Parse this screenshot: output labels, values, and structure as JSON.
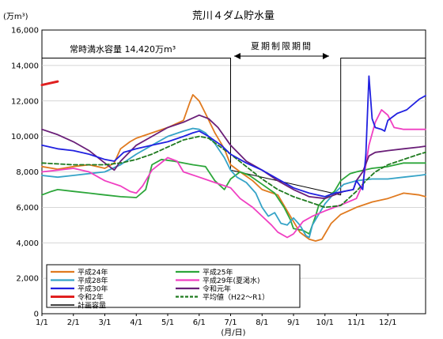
{
  "chart_data": {
    "type": "line",
    "title": "荒川４ダム貯水量",
    "y_unit_label": "(万m³)",
    "x_unit_label": "(月/日)",
    "ylim": [
      0,
      16000
    ],
    "y_ticks": [
      "0",
      "2,000",
      "4,000",
      "6,000",
      "8,000",
      "10,000",
      "12,000",
      "14,000",
      "16,000"
    ],
    "x_ticks": [
      "1/1",
      "2/1",
      "3/1",
      "4/1",
      "5/1",
      "6/1",
      "7/1",
      "8/1",
      "9/1",
      "10/1",
      "11/1",
      "12/1"
    ],
    "grid": true,
    "legend_placement": "bottom-left",
    "annotations": {
      "normal_capacity": "常時満水容量 14,420万m³",
      "summer_period": "夏期制限期間"
    },
    "series": [
      {
        "name": "平成24年",
        "color": "#e07a1f",
        "dash": false,
        "width": 1.8,
        "points": [
          [
            0,
            8300
          ],
          [
            0.5,
            8150
          ],
          [
            1,
            8300
          ],
          [
            1.5,
            8400
          ],
          [
            2,
            8200
          ],
          [
            2.3,
            8500
          ],
          [
            2.5,
            9300
          ],
          [
            2.8,
            9700
          ],
          [
            3,
            9900
          ],
          [
            3.5,
            10200
          ],
          [
            4,
            10500
          ],
          [
            4.5,
            10900
          ],
          [
            4.7,
            11900
          ],
          [
            4.8,
            12350
          ],
          [
            5,
            12000
          ],
          [
            5.2,
            11300
          ],
          [
            5.5,
            10200
          ],
          [
            5.8,
            9300
          ],
          [
            6,
            8400
          ],
          [
            6.3,
            8000
          ],
          [
            6.7,
            7500
          ],
          [
            7,
            7000
          ],
          [
            7.5,
            6700
          ],
          [
            7.8,
            5800
          ],
          [
            8,
            5200
          ],
          [
            8.2,
            4600
          ],
          [
            8.5,
            4200
          ],
          [
            8.7,
            4100
          ],
          [
            8.9,
            4200
          ],
          [
            9,
            4500
          ],
          [
            9.2,
            5100
          ],
          [
            9.5,
            5600
          ],
          [
            10,
            6000
          ],
          [
            10.5,
            6300
          ],
          [
            11,
            6500
          ],
          [
            11.5,
            6800
          ],
          [
            12,
            6700
          ],
          [
            12.2,
            6600
          ]
        ]
      },
      {
        "name": "平成25年",
        "color": "#2ca63a",
        "dash": false,
        "width": 1.8,
        "points": [
          [
            0,
            6700
          ],
          [
            0.3,
            6900
          ],
          [
            0.5,
            7000
          ],
          [
            1,
            6900
          ],
          [
            1.5,
            6800
          ],
          [
            2,
            6700
          ],
          [
            2.5,
            6600
          ],
          [
            3,
            6550
          ],
          [
            3.3,
            7000
          ],
          [
            3.5,
            8400
          ],
          [
            3.8,
            8700
          ],
          [
            4.2,
            8600
          ],
          [
            4.5,
            8500
          ],
          [
            4.8,
            8400
          ],
          [
            5.2,
            8300
          ],
          [
            5.5,
            7500
          ],
          [
            5.8,
            7000
          ],
          [
            6,
            7600
          ],
          [
            6.3,
            8000
          ],
          [
            6.6,
            7800
          ],
          [
            7,
            7300
          ],
          [
            7.4,
            6800
          ],
          [
            7.7,
            6000
          ],
          [
            7.9,
            5300
          ],
          [
            8,
            4800
          ],
          [
            8.3,
            4700
          ],
          [
            8.5,
            4500
          ],
          [
            8.7,
            5500
          ],
          [
            8.8,
            6100
          ],
          [
            9,
            6500
          ],
          [
            9.3,
            6900
          ],
          [
            9.5,
            7500
          ],
          [
            9.8,
            7900
          ],
          [
            10,
            8000
          ],
          [
            10.5,
            8200
          ],
          [
            11,
            8300
          ],
          [
            11.5,
            8500
          ],
          [
            12,
            8500
          ],
          [
            12.2,
            8500
          ]
        ]
      },
      {
        "name": "平成28年",
        "color": "#35a3c7",
        "dash": false,
        "width": 1.8,
        "points": [
          [
            0,
            7800
          ],
          [
            0.5,
            7700
          ],
          [
            1,
            7800
          ],
          [
            1.5,
            7900
          ],
          [
            2,
            8000
          ],
          [
            2.5,
            8400
          ],
          [
            3,
            9000
          ],
          [
            3.5,
            9500
          ],
          [
            4,
            10000
          ],
          [
            4.5,
            10300
          ],
          [
            4.8,
            10450
          ],
          [
            5,
            10400
          ],
          [
            5.2,
            10200
          ],
          [
            5.5,
            9600
          ],
          [
            5.8,
            8800
          ],
          [
            6,
            8100
          ],
          [
            6.2,
            7700
          ],
          [
            6.5,
            7400
          ],
          [
            6.8,
            6800
          ],
          [
            7,
            6000
          ],
          [
            7.2,
            5500
          ],
          [
            7.4,
            5700
          ],
          [
            7.6,
            5100
          ],
          [
            7.8,
            5000
          ],
          [
            8,
            5400
          ],
          [
            8.2,
            5000
          ],
          [
            8.4,
            4400
          ],
          [
            8.5,
            4300
          ],
          [
            8.6,
            5000
          ],
          [
            8.8,
            5600
          ],
          [
            9,
            6200
          ],
          [
            9.3,
            6800
          ],
          [
            9.6,
            7300
          ],
          [
            10,
            7500
          ],
          [
            10.5,
            7600
          ],
          [
            11,
            7600
          ],
          [
            11.5,
            7700
          ],
          [
            12,
            7800
          ],
          [
            12.2,
            7850
          ]
        ]
      },
      {
        "name": "平成29年(夏渇水)",
        "color": "#f03fc2",
        "dash": false,
        "width": 1.8,
        "points": [
          [
            0,
            8000
          ],
          [
            0.5,
            8100
          ],
          [
            1,
            8200
          ],
          [
            1.5,
            8000
          ],
          [
            2,
            7500
          ],
          [
            2.5,
            7200
          ],
          [
            2.8,
            6900
          ],
          [
            3,
            6800
          ],
          [
            3.2,
            7200
          ],
          [
            3.5,
            8100
          ],
          [
            4,
            8800
          ],
          [
            4.3,
            8600
          ],
          [
            4.5,
            8000
          ],
          [
            5,
            7700
          ],
          [
            5.5,
            7400
          ],
          [
            6,
            7100
          ],
          [
            6.3,
            6500
          ],
          [
            6.7,
            6000
          ],
          [
            7,
            5500
          ],
          [
            7.3,
            5000
          ],
          [
            7.5,
            4600
          ],
          [
            7.8,
            4300
          ],
          [
            8,
            4500
          ],
          [
            8.3,
            5200
          ],
          [
            8.6,
            5500
          ],
          [
            9,
            5800
          ],
          [
            9.3,
            6000
          ],
          [
            9.6,
            6200
          ],
          [
            10,
            6500
          ],
          [
            10.2,
            7300
          ],
          [
            10.4,
            9500
          ],
          [
            10.6,
            10800
          ],
          [
            10.8,
            11500
          ],
          [
            11,
            11200
          ],
          [
            11.2,
            10500
          ],
          [
            11.5,
            10400
          ],
          [
            12,
            10400
          ],
          [
            12.2,
            10400
          ]
        ]
      },
      {
        "name": "平成30年",
        "color": "#2020e0",
        "dash": false,
        "width": 1.8,
        "points": [
          [
            0,
            9500
          ],
          [
            0.5,
            9300
          ],
          [
            1,
            9200
          ],
          [
            1.5,
            9000
          ],
          [
            2,
            8700
          ],
          [
            2.3,
            8600
          ],
          [
            2.6,
            9100
          ],
          [
            3,
            9300
          ],
          [
            3.5,
            9500
          ],
          [
            4,
            9700
          ],
          [
            4.5,
            10000
          ],
          [
            4.8,
            10200
          ],
          [
            5,
            10300
          ],
          [
            5.3,
            10000
          ],
          [
            5.7,
            9500
          ],
          [
            6,
            9000
          ],
          [
            6.5,
            8500
          ],
          [
            7,
            8100
          ],
          [
            7.5,
            7600
          ],
          [
            8,
            7100
          ],
          [
            8.5,
            6800
          ],
          [
            9,
            6600
          ],
          [
            9.3,
            6800
          ],
          [
            9.6,
            6900
          ],
          [
            9.9,
            7000
          ],
          [
            10,
            7500
          ],
          [
            10.2,
            7000
          ],
          [
            10.3,
            9000
          ],
          [
            10.4,
            13400
          ],
          [
            10.5,
            11000
          ],
          [
            10.6,
            10500
          ],
          [
            10.8,
            10400
          ],
          [
            10.9,
            10300
          ],
          [
            11,
            10900
          ],
          [
            11.3,
            11300
          ],
          [
            11.6,
            11500
          ],
          [
            12,
            12100
          ],
          [
            12.2,
            12300
          ]
        ]
      },
      {
        "name": "令和元年",
        "color": "#6a1f78",
        "dash": false,
        "width": 1.8,
        "points": [
          [
            0,
            10400
          ],
          [
            0.5,
            10100
          ],
          [
            1,
            9700
          ],
          [
            1.5,
            9200
          ],
          [
            2,
            8500
          ],
          [
            2.3,
            8100
          ],
          [
            2.5,
            8600
          ],
          [
            3,
            9500
          ],
          [
            3.5,
            10000
          ],
          [
            4,
            10500
          ],
          [
            4.5,
            10800
          ],
          [
            5,
            11200
          ],
          [
            5.3,
            11000
          ],
          [
            5.6,
            10500
          ],
          [
            6,
            9500
          ],
          [
            6.5,
            8600
          ],
          [
            7,
            8100
          ],
          [
            7.5,
            7500
          ],
          [
            8,
            7000
          ],
          [
            8.5,
            6600
          ],
          [
            9,
            6500
          ],
          [
            9.3,
            6700
          ],
          [
            9.6,
            6900
          ],
          [
            9.9,
            7000
          ],
          [
            10,
            7500
          ],
          [
            10.2,
            8000
          ],
          [
            10.4,
            8900
          ],
          [
            10.6,
            9100
          ],
          [
            11,
            9200
          ],
          [
            11.5,
            9300
          ],
          [
            12,
            9400
          ],
          [
            12.2,
            9450
          ]
        ]
      },
      {
        "name": "令和2年",
        "color": "#e02020",
        "dash": false,
        "width": 3,
        "points": [
          [
            0,
            12900
          ],
          [
            0.25,
            13000
          ],
          [
            0.5,
            13100
          ]
        ]
      },
      {
        "name": "平均値（H22～R1）",
        "color": "#1f7a1f",
        "dash": true,
        "width": 1.8,
        "points": [
          [
            0,
            8500
          ],
          [
            0.5,
            8450
          ],
          [
            1,
            8400
          ],
          [
            1.5,
            8400
          ],
          [
            2,
            8400
          ],
          [
            2.5,
            8500
          ],
          [
            3,
            8700
          ],
          [
            3.5,
            9000
          ],
          [
            4,
            9400
          ],
          [
            4.5,
            9800
          ],
          [
            5,
            10000
          ],
          [
            5.3,
            9900
          ],
          [
            5.6,
            9500
          ],
          [
            6,
            9000
          ],
          [
            6.5,
            8300
          ],
          [
            7,
            7600
          ],
          [
            7.5,
            7000
          ],
          [
            8,
            6600
          ],
          [
            8.5,
            6300
          ],
          [
            9,
            6000
          ],
          [
            9.5,
            6100
          ],
          [
            10,
            6900
          ],
          [
            10.3,
            7500
          ],
          [
            10.6,
            8000
          ],
          [
            11,
            8400
          ],
          [
            11.5,
            8700
          ],
          [
            12,
            9000
          ],
          [
            12.2,
            9100
          ]
        ]
      },
      {
        "name": "計画容量",
        "color": "#000000",
        "dash": false,
        "width": 1,
        "points": [
          [
            0,
            14420
          ],
          [
            6,
            14420
          ],
          [
            6,
            8100
          ],
          [
            9.5,
            6700
          ],
          [
            9.5,
            14420
          ],
          [
            12.2,
            14420
          ]
        ]
      }
    ]
  }
}
